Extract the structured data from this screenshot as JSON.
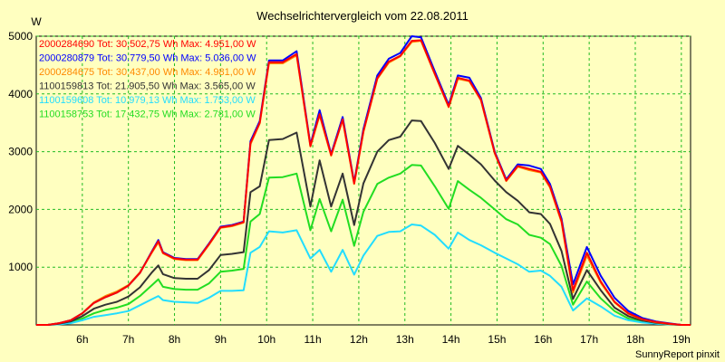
{
  "chart_data": {
    "type": "line",
    "title": "Wechselrichtervergleich vom 22.08.2011",
    "ylabel": "W",
    "xlabel": "",
    "ylim": [
      0,
      5000
    ],
    "yticks": [
      1000,
      2000,
      3000,
      4000,
      5000
    ],
    "xlim": [
      5.0,
      19.2
    ],
    "xticks": [
      6,
      7,
      8,
      9,
      10,
      11,
      12,
      13,
      14,
      15,
      16,
      17,
      18,
      19
    ],
    "xtick_labels": [
      "6h",
      "7h",
      "8h",
      "9h",
      "10h",
      "11h",
      "12h",
      "13h",
      "14h",
      "15h",
      "16h",
      "17h",
      "18h",
      "19h"
    ],
    "grid": true,
    "legend_position": "top-left",
    "x": [
      5.0,
      5.25,
      5.5,
      5.75,
      6.0,
      6.25,
      6.5,
      6.75,
      7.0,
      7.25,
      7.5,
      7.65,
      7.75,
      8.0,
      8.25,
      8.5,
      8.75,
      9.0,
      9.25,
      9.5,
      9.65,
      9.85,
      10.05,
      10.35,
      10.65,
      10.95,
      11.15,
      11.4,
      11.65,
      11.9,
      12.1,
      12.4,
      12.65,
      12.9,
      13.15,
      13.35,
      13.65,
      13.95,
      14.15,
      14.4,
      14.65,
      14.95,
      15.2,
      15.45,
      15.7,
      15.95,
      16.15,
      16.4,
      16.65,
      16.95,
      17.25,
      17.55,
      17.85,
      18.15,
      18.45,
      18.75,
      19.0,
      19.2
    ],
    "series": [
      {
        "name": "2000284690 Tot: 30.502,75 Wh Max: 4.951,00 W",
        "color": "#ff0000",
        "values": [
          0,
          0,
          30,
          80,
          200,
          380,
          480,
          560,
          680,
          900,
          1250,
          1450,
          1250,
          1150,
          1130,
          1130,
          1400,
          1690,
          1720,
          1780,
          3150,
          3500,
          4550,
          4550,
          4690,
          3100,
          3650,
          2940,
          3560,
          2450,
          3350,
          4270,
          4560,
          4660,
          4920,
          4930,
          4350,
          3780,
          4280,
          4230,
          3900,
          2980,
          2500,
          2750,
          2700,
          2650,
          2400,
          1800,
          600,
          1250,
          750,
          400,
          200,
          100,
          50,
          20,
          0,
          0
        ]
      },
      {
        "name": "2000280879 Tot: 30.779,50 Wh Max: 5.036,00 W",
        "color": "#0000ff",
        "values": [
          0,
          0,
          30,
          80,
          200,
          380,
          480,
          560,
          680,
          900,
          1260,
          1470,
          1260,
          1160,
          1140,
          1140,
          1410,
          1700,
          1730,
          1790,
          3180,
          3530,
          4580,
          4580,
          4740,
          3120,
          3720,
          2960,
          3600,
          2470,
          3390,
          4320,
          4610,
          4710,
          5000,
          4980,
          4390,
          3810,
          4320,
          4280,
          3930,
          3000,
          2520,
          2780,
          2760,
          2700,
          2440,
          1840,
          700,
          1350,
          850,
          470,
          240,
          120,
          60,
          25,
          0,
          0
        ]
      },
      {
        "name": "2000284675 Tot: 30.437,00 Wh Max: 4.981,00 W",
        "color": "#ff8800",
        "values": [
          0,
          0,
          30,
          80,
          200,
          390,
          500,
          580,
          690,
          910,
          1240,
          1430,
          1240,
          1140,
          1120,
          1120,
          1390,
          1680,
          1710,
          1770,
          3130,
          3490,
          4530,
          4530,
          4670,
          3090,
          3630,
          2930,
          3550,
          2440,
          3340,
          4260,
          4540,
          4650,
          4900,
          4920,
          4340,
          3770,
          4260,
          4220,
          3890,
          2970,
          2490,
          2740,
          2680,
          2640,
          2380,
          1780,
          560,
          1200,
          730,
          390,
          190,
          95,
          45,
          18,
          0,
          0
        ]
      },
      {
        "name": "1100159813 Tot: 21.905,50 Wh Max: 3.565,00 W",
        "color": "#333333",
        "values": [
          0,
          0,
          20,
          60,
          150,
          280,
          350,
          400,
          490,
          650,
          900,
          1030,
          880,
          810,
          800,
          800,
          950,
          1210,
          1230,
          1260,
          2300,
          2400,
          3200,
          3220,
          3330,
          2050,
          2850,
          2050,
          2620,
          1730,
          2450,
          3000,
          3200,
          3260,
          3540,
          3530,
          3150,
          2700,
          3100,
          2950,
          2780,
          2500,
          2300,
          2150,
          1950,
          1920,
          1750,
          1280,
          450,
          950,
          600,
          300,
          150,
          75,
          35,
          12,
          0,
          0
        ]
      },
      {
        "name": "1100159608 Tot: 10.979,13 Wh Max: 1.753,00 W",
        "color": "#22ddff",
        "values": [
          0,
          0,
          10,
          30,
          80,
          140,
          170,
          200,
          240,
          340,
          440,
          500,
          430,
          400,
          390,
          380,
          470,
          590,
          590,
          600,
          1250,
          1350,
          1620,
          1600,
          1640,
          1150,
          1300,
          920,
          1300,
          870,
          1200,
          1540,
          1610,
          1620,
          1740,
          1720,
          1560,
          1320,
          1600,
          1470,
          1380,
          1250,
          1150,
          1050,
          920,
          940,
          850,
          660,
          250,
          460,
          320,
          160,
          80,
          40,
          20,
          8,
          0,
          0
        ]
      },
      {
        "name": "1100158753 Tot: 17.432,75 Wh Max: 2.781,00 W",
        "color": "#22dd22",
        "values": [
          0,
          0,
          15,
          45,
          110,
          200,
          260,
          300,
          360,
          500,
          680,
          790,
          660,
          620,
          610,
          610,
          720,
          920,
          940,
          970,
          1790,
          1920,
          2550,
          2560,
          2620,
          1640,
          2180,
          1620,
          2170,
          1370,
          1960,
          2440,
          2550,
          2620,
          2770,
          2760,
          2400,
          2010,
          2490,
          2340,
          2200,
          2000,
          1830,
          1740,
          1560,
          1510,
          1400,
          1020,
          350,
          750,
          460,
          240,
          110,
          55,
          25,
          10,
          0,
          0
        ]
      }
    ]
  },
  "footer": {
    "credit": "SunnyReport pinxit"
  }
}
